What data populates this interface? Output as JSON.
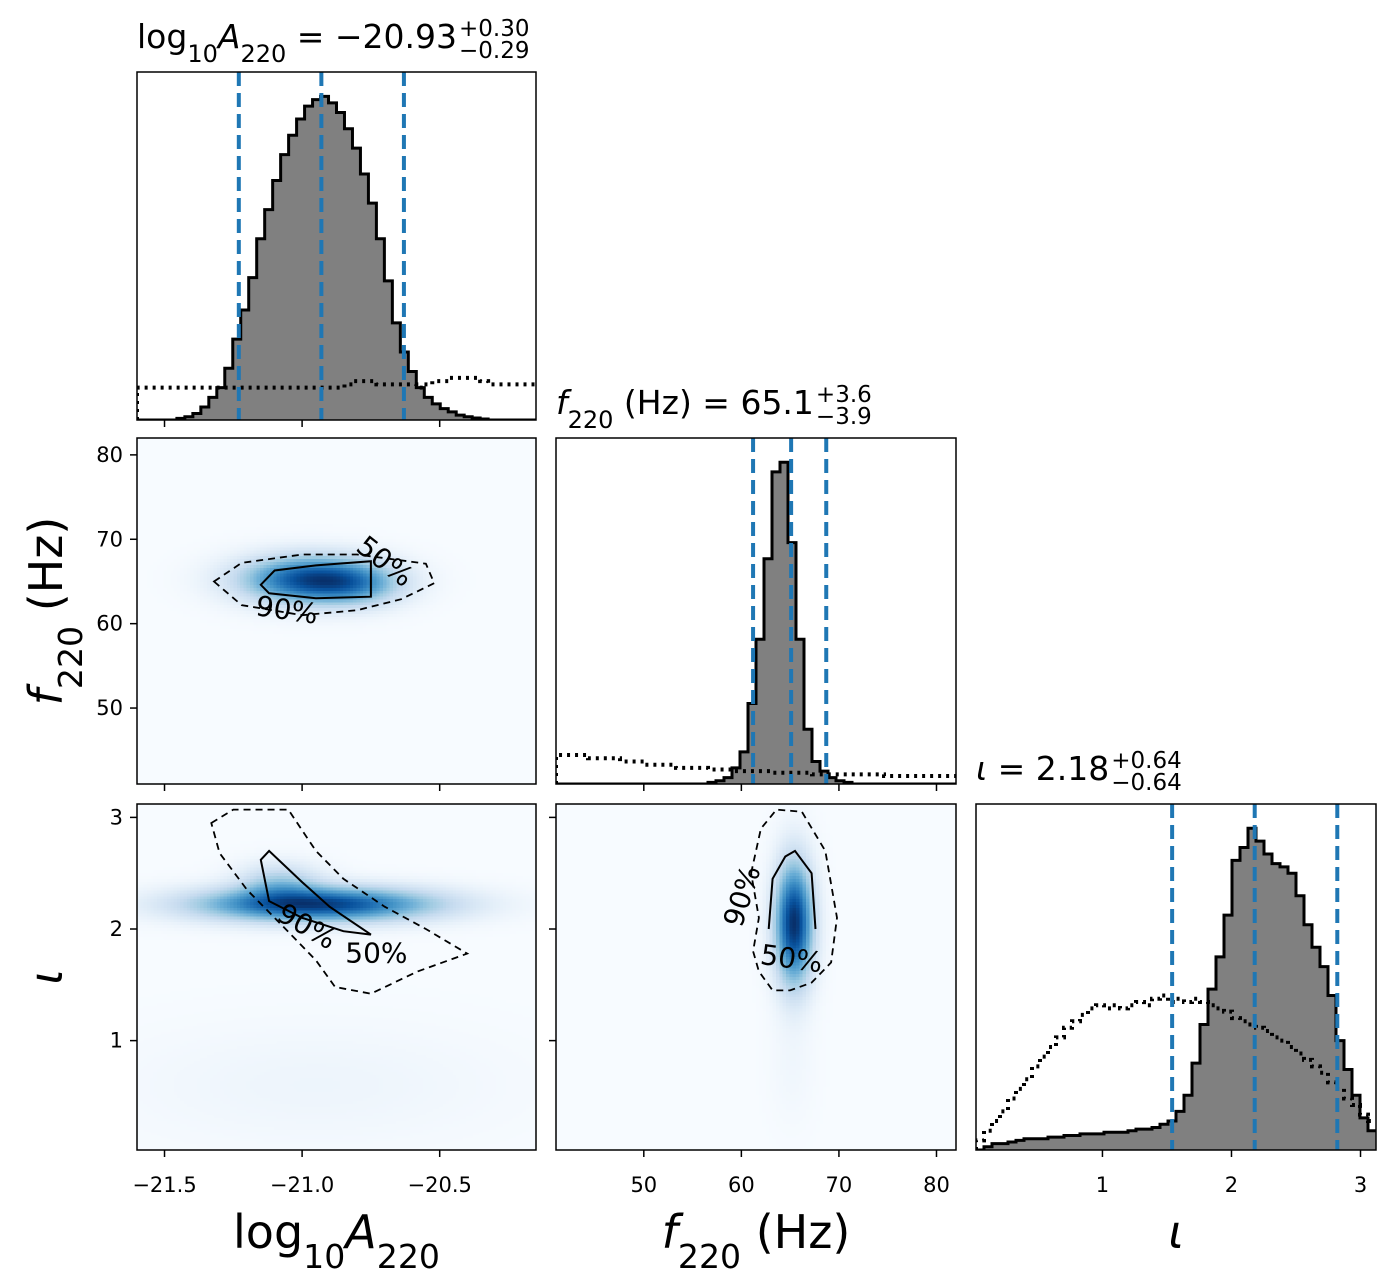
{
  "chart_data": {
    "type": "corner",
    "parameters": [
      {
        "key": "logA",
        "label_parts": [
          [
            "log",
            "n"
          ],
          [
            "10",
            "sub"
          ],
          [
            "A",
            "i"
          ],
          [
            "220",
            "sub"
          ]
        ],
        "title": {
          "prefix": "= ",
          "median": "−20.93",
          "plus": "+0.30",
          "minus": "−0.29"
        },
        "range": [
          -21.6,
          -20.15
        ],
        "ticks": [
          -21.5,
          -21.0,
          -20.5
        ],
        "tick_labels": [
          "−21.5",
          "−21.0",
          "−20.5"
        ],
        "quantiles": [
          -21.23,
          -20.93,
          -20.63
        ],
        "posterior_hist": {
          "edges_start": -21.6,
          "bin_width": 0.029,
          "heights": [
            0.0,
            0.0,
            0.0,
            0.0,
            0.0,
            0.005,
            0.01,
            0.02,
            0.04,
            0.07,
            0.1,
            0.16,
            0.25,
            0.34,
            0.44,
            0.56,
            0.65,
            0.74,
            0.82,
            0.88,
            0.93,
            0.97,
            0.99,
            1.0,
            0.98,
            0.95,
            0.9,
            0.84,
            0.76,
            0.67,
            0.56,
            0.43,
            0.3,
            0.21,
            0.15,
            0.1,
            0.07,
            0.05,
            0.035,
            0.025,
            0.015,
            0.01,
            0.006,
            0.003,
            0.0,
            0.0,
            0.0,
            0.0,
            0.0,
            0.0
          ]
        },
        "prior_hist": {
          "edges_start": -21.6,
          "bin_width": 0.029,
          "heights": [
            0.1,
            0.1,
            0.1,
            0.1,
            0.1,
            0.1,
            0.1,
            0.1,
            0.1,
            0.1,
            0.1,
            0.1,
            0.1,
            0.1,
            0.1,
            0.1,
            0.1,
            0.1,
            0.1,
            0.1,
            0.1,
            0.1,
            0.1,
            0.1,
            0.1,
            0.1,
            0.11,
            0.12,
            0.12,
            0.12,
            0.11,
            0.11,
            0.11,
            0.11,
            0.11,
            0.1,
            0.11,
            0.12,
            0.12,
            0.13,
            0.13,
            0.13,
            0.13,
            0.12,
            0.11,
            0.11,
            0.11,
            0.11,
            0.11,
            0.11
          ]
        }
      },
      {
        "key": "f220",
        "label_parts": [
          [
            "f",
            "i"
          ],
          [
            "220",
            "sub"
          ],
          [
            " (Hz)",
            "n"
          ]
        ],
        "title": {
          "prefix": "= ",
          "median": "65.1",
          "plus": "+3.6",
          "minus": "−3.9"
        },
        "range": [
          41,
          82
        ],
        "ticks": [
          50,
          60,
          70,
          80
        ],
        "tick_labels": [
          "50",
          "60",
          "70",
          "80"
        ],
        "quantiles": [
          61.2,
          65.1,
          68.7
        ],
        "posterior_hist": {
          "edges_start": 41,
          "bin_width": 0.82,
          "heights": [
            0,
            0,
            0,
            0,
            0,
            0,
            0,
            0,
            0,
            0,
            0,
            0,
            0,
            0,
            0,
            0,
            0,
            0,
            0,
            0.005,
            0.01,
            0.02,
            0.05,
            0.1,
            0.25,
            0.45,
            0.7,
            0.97,
            1.0,
            0.75,
            0.45,
            0.17,
            0.07,
            0.04,
            0.02,
            0.01,
            0.005,
            0,
            0,
            0,
            0,
            0,
            0,
            0,
            0,
            0,
            0,
            0,
            0,
            0
          ]
        },
        "prior_hist": {
          "edges_start": 41,
          "bin_width": 0.82,
          "heights": [
            0.09,
            0.09,
            0.09,
            0.09,
            0.08,
            0.08,
            0.08,
            0.08,
            0.07,
            0.07,
            0.07,
            0.06,
            0.06,
            0.06,
            0.06,
            0.05,
            0.05,
            0.05,
            0.05,
            0.045,
            0.045,
            0.045,
            0.04,
            0.04,
            0.04,
            0.04,
            0.04,
            0.035,
            0.035,
            0.035,
            0.035,
            0.035,
            0.03,
            0.03,
            0.03,
            0.03,
            0.03,
            0.03,
            0.03,
            0.03,
            0.03,
            0.025,
            0.025,
            0.025,
            0.025,
            0.025,
            0.025,
            0.025,
            0.025,
            0.025
          ]
        }
      },
      {
        "key": "iota",
        "label_parts": [
          [
            "ι",
            "i"
          ]
        ],
        "title": {
          "prefix": "= ",
          "median": "2.18",
          "plus": "+0.64",
          "minus": "−0.64"
        },
        "range": [
          0.02,
          3.12
        ],
        "ticks": [
          1,
          2,
          3
        ],
        "tick_labels": [
          "1",
          "2",
          "3"
        ],
        "quantiles": [
          1.54,
          2.18,
          2.82
        ],
        "posterior_hist": {
          "edges_start": 0.02,
          "bin_width": 0.062,
          "heights": [
            0.0,
            0.01,
            0.02,
            0.02,
            0.025,
            0.03,
            0.035,
            0.035,
            0.035,
            0.04,
            0.04,
            0.045,
            0.045,
            0.05,
            0.05,
            0.05,
            0.055,
            0.055,
            0.055,
            0.06,
            0.065,
            0.065,
            0.07,
            0.08,
            0.09,
            0.12,
            0.17,
            0.27,
            0.39,
            0.5,
            0.6,
            0.73,
            0.9,
            0.94,
            1.0,
            0.96,
            0.92,
            0.89,
            0.88,
            0.86,
            0.79,
            0.7,
            0.63,
            0.57,
            0.48,
            0.34,
            0.25,
            0.17,
            0.1,
            0.06
          ]
        },
        "prior_hist": {
          "edges_start": 0.02,
          "bin_width": 0.062,
          "heights": [
            0.03,
            0.06,
            0.09,
            0.12,
            0.16,
            0.19,
            0.22,
            0.26,
            0.29,
            0.32,
            0.35,
            0.38,
            0.4,
            0.42,
            0.44,
            0.45,
            0.44,
            0.45,
            0.44,
            0.45,
            0.46,
            0.45,
            0.47,
            0.48,
            0.46,
            0.47,
            0.46,
            0.47,
            0.46,
            0.45,
            0.44,
            0.43,
            0.41,
            0.4,
            0.39,
            0.38,
            0.37,
            0.35,
            0.34,
            0.32,
            0.3,
            0.28,
            0.26,
            0.24,
            0.21,
            0.19,
            0.16,
            0.14,
            0.11,
            0.09
          ]
        }
      }
    ],
    "density_color": "#2171b5",
    "quantile_color": "#1f77b4",
    "hist_fill": "#808080",
    "contour_levels": [
      "50%",
      "90%"
    ],
    "pairs": [
      {
        "x": "logA",
        "y": "f220",
        "blobs": [
          {
            "cx": -20.97,
            "cy": 65.2,
            "sx": 0.16,
            "sy": 1.8,
            "rot_deg": -3,
            "w": 1.0
          },
          {
            "cx": -20.8,
            "cy": 64.6,
            "sx": 0.11,
            "sy": 1.6,
            "rot_deg": 0,
            "w": 0.35
          }
        ],
        "contour_50": [
          [
            -21.15,
            64.6
          ],
          [
            -21.1,
            66.3
          ],
          [
            -20.95,
            66.9
          ],
          [
            -20.75,
            67.4
          ],
          [
            -20.75,
            63.2
          ],
          [
            -20.95,
            63.0
          ],
          [
            -21.12,
            63.6
          ]
        ],
        "contour_90": [
          [
            -21.32,
            65.0
          ],
          [
            -21.22,
            67.2
          ],
          [
            -21.0,
            68.2
          ],
          [
            -20.8,
            68.2
          ],
          [
            -20.55,
            67.1
          ],
          [
            -20.52,
            64.8
          ],
          [
            -20.64,
            62.9
          ],
          [
            -20.8,
            61.6
          ],
          [
            -21.0,
            61.0
          ],
          [
            -21.22,
            62.2
          ]
        ],
        "labels": [
          {
            "text": "50%",
            "x": -20.72,
            "y": 66.5,
            "rot": 38
          },
          {
            "text": "90%",
            "x": -21.06,
            "y": 60.5,
            "rot": 8
          }
        ]
      },
      {
        "x": "logA",
        "y": "iota",
        "blobs": [
          {
            "cx": -20.95,
            "cy": 2.22,
            "sx": 0.28,
            "sy": 0.1,
            "rot_deg": -33,
            "w": 1.0
          },
          {
            "cx": -21.08,
            "cy": 2.4,
            "sx": 0.1,
            "sy": 0.12,
            "rot_deg": 0,
            "w": 0.3
          },
          {
            "cx": -20.95,
            "cy": 0.6,
            "sx": 0.45,
            "sy": 0.35,
            "rot_deg": 0,
            "w": 0.03
          }
        ],
        "contour_50": [
          [
            -21.15,
            2.62
          ],
          [
            -21.12,
            2.7
          ],
          [
            -21.0,
            2.42
          ],
          [
            -20.9,
            2.2
          ],
          [
            -20.75,
            1.95
          ],
          [
            -20.85,
            1.98
          ],
          [
            -21.0,
            2.1
          ],
          [
            -21.12,
            2.25
          ]
        ],
        "contour_90": [
          [
            -21.33,
            2.95
          ],
          [
            -21.25,
            3.07
          ],
          [
            -21.05,
            3.07
          ],
          [
            -20.95,
            2.7
          ],
          [
            -20.85,
            2.45
          ],
          [
            -20.7,
            2.2
          ],
          [
            -20.55,
            2.0
          ],
          [
            -20.4,
            1.78
          ],
          [
            -20.58,
            1.62
          ],
          [
            -20.75,
            1.42
          ],
          [
            -20.88,
            1.48
          ],
          [
            -20.95,
            1.72
          ],
          [
            -21.08,
            2.05
          ],
          [
            -21.2,
            2.35
          ],
          [
            -21.3,
            2.68
          ]
        ],
        "labels": [
          {
            "text": "90%",
            "x": -21.0,
            "y": 1.95,
            "rot": 30
          },
          {
            "text": "50%",
            "x": -20.73,
            "y": 1.7,
            "rot": 0
          }
        ]
      },
      {
        "x": "f220",
        "y": "iota",
        "blobs": [
          {
            "cx": 65.4,
            "cy": 2.05,
            "sx": 1.25,
            "sy": 0.35,
            "rot_deg": 0,
            "w": 1.0
          },
          {
            "cx": 65.2,
            "cy": 0.8,
            "sx": 1.5,
            "sy": 0.35,
            "rot_deg": 0,
            "w": 0.02
          }
        ],
        "contour_50": [
          [
            62.8,
            2.0
          ],
          [
            63.2,
            2.45
          ],
          [
            64.5,
            2.65
          ],
          [
            65.5,
            2.7
          ],
          [
            67.2,
            2.5
          ],
          [
            67.6,
            2.0
          ]
        ],
        "contour_90": [
          [
            61.0,
            2.5
          ],
          [
            62.0,
            2.9
          ],
          [
            63.6,
            3.07
          ],
          [
            66.2,
            3.05
          ],
          [
            68.6,
            2.7
          ],
          [
            69.8,
            2.1
          ],
          [
            69.2,
            1.7
          ],
          [
            67.2,
            1.52
          ],
          [
            65.0,
            1.45
          ],
          [
            63.2,
            1.45
          ],
          [
            61.8,
            1.62
          ],
          [
            61.2,
            1.8
          ],
          [
            61.8,
            2.1
          ],
          [
            61.4,
            2.3
          ]
        ],
        "labels": [
          {
            "text": "90%",
            "x": 61.0,
            "y": 2.27,
            "rot": -72
          },
          {
            "text": "50%",
            "x": 65.0,
            "y": 1.65,
            "rot": 8
          }
        ]
      }
    ],
    "grid": false,
    "legend": "none"
  }
}
